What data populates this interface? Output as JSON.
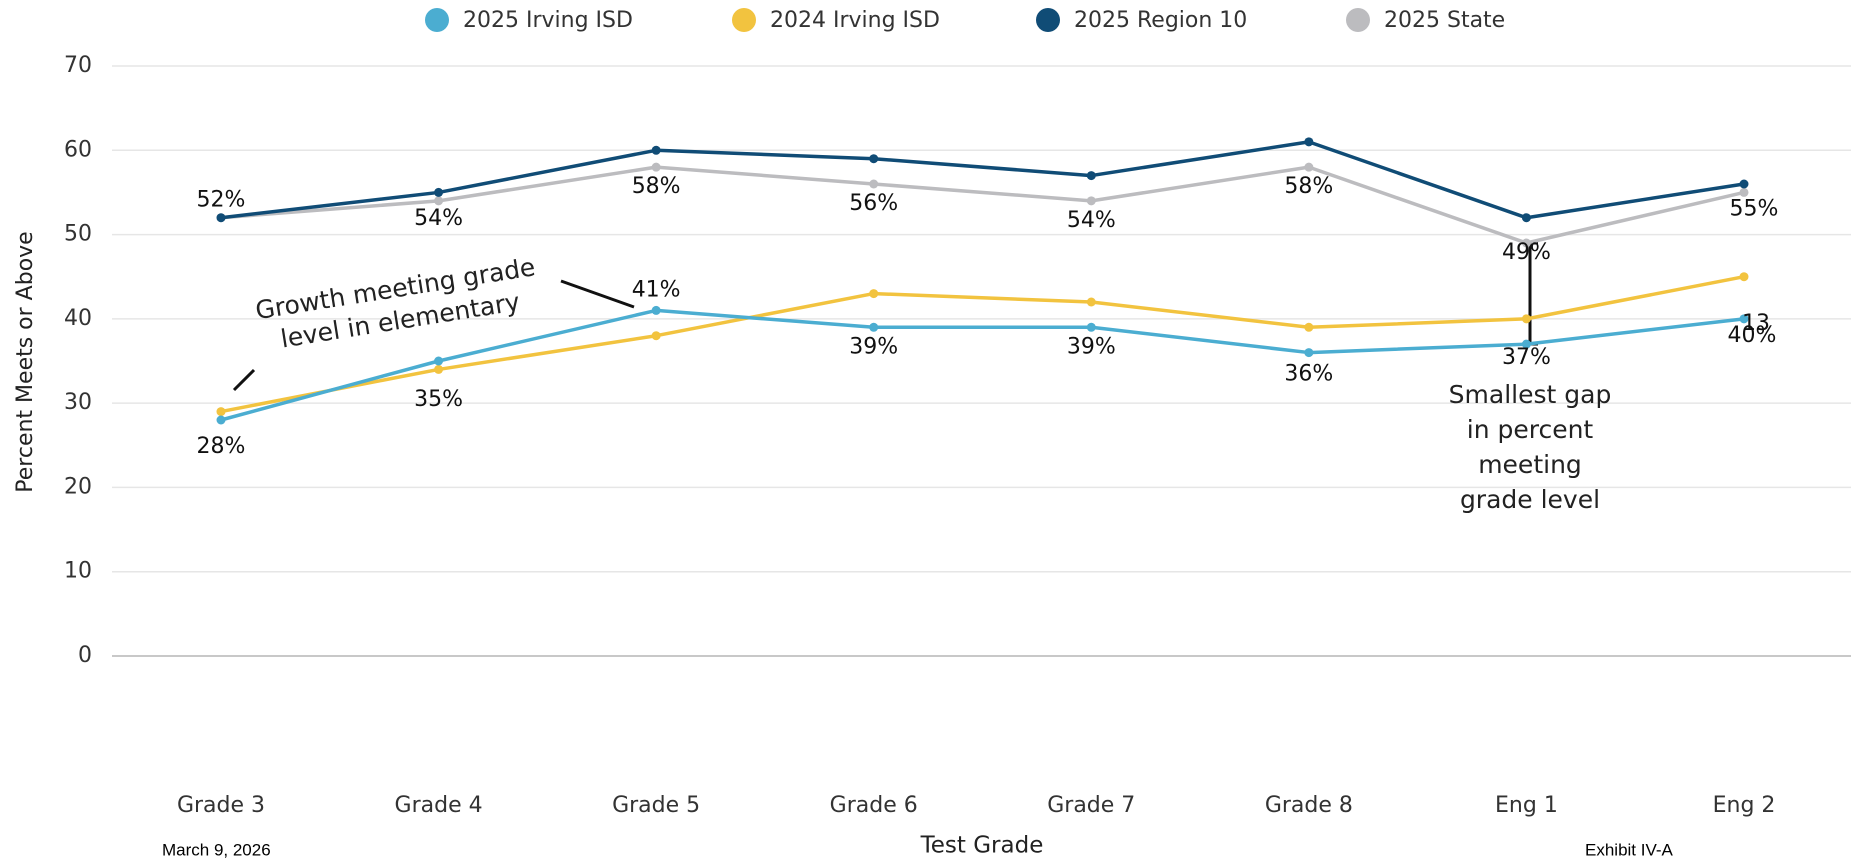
{
  "chart_data": {
    "type": "line",
    "x_label": "Test Grade",
    "y_label": "Percent Meets or Above",
    "categories": [
      "Grade 3",
      "Grade 4",
      "Grade 5",
      "Grade 6",
      "Grade 7",
      "Grade 8",
      "Eng 1",
      "Eng 2"
    ],
    "series": [
      {
        "name": "2025 Irving ISD",
        "color": "#4badd1",
        "values": [
          28,
          35,
          41,
          39,
          39,
          36,
          37,
          40
        ],
        "value_labels": [
          "28%",
          "35%",
          "41%",
          "39%",
          "39%",
          "36%",
          "37%",
          "40%"
        ]
      },
      {
        "name": "2024 Irving ISD",
        "color": "#f2c33f",
        "values": [
          29,
          34,
          38,
          43,
          42,
          39,
          40,
          45
        ]
      },
      {
        "name": "2025 Region 10",
        "color": "#104c76",
        "values": [
          52,
          55,
          60,
          59,
          57,
          61,
          52,
          56
        ]
      },
      {
        "name": "2025 State",
        "color": "#bcbcbf",
        "values": [
          52,
          54,
          58,
          56,
          54,
          58,
          49,
          55
        ],
        "value_labels": [
          "52%",
          "54%",
          "58%",
          "56%",
          "54%",
          "58%",
          "49%",
          "55%"
        ]
      }
    ],
    "ylim": [
      0,
      70
    ],
    "yticks": [
      0,
      10,
      20,
      30,
      40,
      50,
      60,
      70
    ],
    "grid": true,
    "legend": "top",
    "annotations": [
      {
        "text": [
          "Growth meeting grade",
          "level in elementary"
        ]
      },
      {
        "text": [
          "Smallest gap",
          "in percent",
          "meeting",
          "grade level"
        ]
      },
      {
        "text": "13"
      }
    ],
    "footer_left": "March 9, 2026",
    "footer_right": "Exhibit IV-A"
  }
}
